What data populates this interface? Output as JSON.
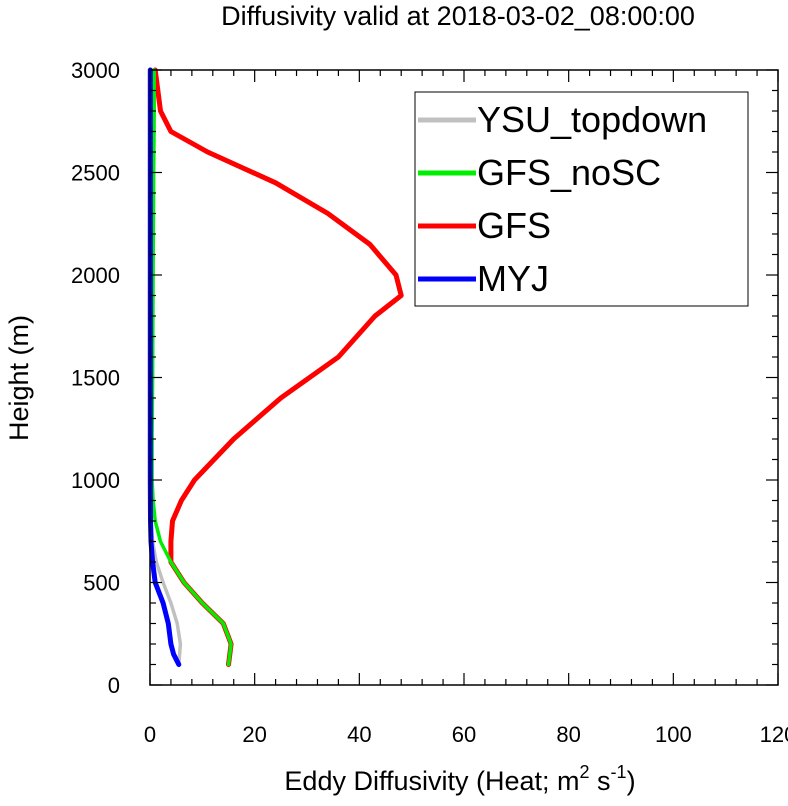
{
  "chart_data": {
    "type": "line",
    "title": "Diffusivity valid at 2018-03-02_08:00:00",
    "xlabel": {
      "prefix": "Eddy Diffusivity (Heat; m",
      "sup1": "2",
      "middle": " s",
      "sup2": "-1",
      "suffix": ")"
    },
    "ylabel": "Height (m)",
    "xlim": [
      0,
      120
    ],
    "ylim": [
      0,
      3000
    ],
    "x_ticks": [
      "0",
      "20",
      "40",
      "60",
      "80",
      "100",
      "120"
    ],
    "y_ticks": [
      "0",
      "500",
      "1000",
      "1500",
      "2000",
      "2500",
      "3000"
    ],
    "grid": false,
    "legend_position": "top-right",
    "series": [
      {
        "name": "YSU_topdown",
        "color": "#c0c0c0",
        "points": [
          [
            5.5,
            100
          ],
          [
            5.8,
            200
          ],
          [
            5.2,
            300
          ],
          [
            4,
            400
          ],
          [
            2.5,
            500
          ],
          [
            1.2,
            600
          ],
          [
            0.5,
            700
          ],
          [
            0.2,
            800
          ],
          [
            0.1,
            900
          ],
          [
            0.1,
            1000
          ],
          [
            0.2,
            1200
          ],
          [
            0.3,
            1500
          ],
          [
            0.4,
            2000
          ],
          [
            0.5,
            2500
          ],
          [
            0.6,
            2800
          ],
          [
            0.6,
            3000
          ]
        ]
      },
      {
        "name": "GFS_noSC",
        "color": "#00ee00",
        "points": [
          [
            15,
            100
          ],
          [
            15.5,
            200
          ],
          [
            14,
            300
          ],
          [
            10,
            400
          ],
          [
            6.5,
            500
          ],
          [
            4,
            600
          ],
          [
            2,
            700
          ],
          [
            1,
            800
          ],
          [
            0.6,
            900
          ],
          [
            0.4,
            1000
          ],
          [
            0.4,
            1200
          ],
          [
            0.5,
            1500
          ],
          [
            0.6,
            2000
          ],
          [
            0.7,
            2500
          ],
          [
            0.8,
            2800
          ],
          [
            0.8,
            3000
          ]
        ]
      },
      {
        "name": "GFS",
        "color": "#ff0000",
        "points": [
          [
            15,
            100
          ],
          [
            15.5,
            200
          ],
          [
            14,
            300
          ],
          [
            10,
            400
          ],
          [
            6.5,
            500
          ],
          [
            4,
            600
          ],
          [
            4,
            700
          ],
          [
            4.3,
            800
          ],
          [
            6,
            900
          ],
          [
            8.5,
            1000
          ],
          [
            16,
            1200
          ],
          [
            25,
            1400
          ],
          [
            36,
            1600
          ],
          [
            43,
            1800
          ],
          [
            48,
            1900
          ],
          [
            47,
            2000
          ],
          [
            42,
            2150
          ],
          [
            34,
            2300
          ],
          [
            24,
            2450
          ],
          [
            11,
            2600
          ],
          [
            4,
            2700
          ],
          [
            2,
            2800
          ],
          [
            1,
            3000
          ]
        ]
      },
      {
        "name": "MYJ",
        "color": "#0000ff",
        "points": [
          [
            5.5,
            100
          ],
          [
            4.5,
            150
          ],
          [
            4,
            200
          ],
          [
            3.5,
            300
          ],
          [
            2.5,
            400
          ],
          [
            1,
            500
          ],
          [
            0.5,
            600
          ],
          [
            0.2,
            700
          ],
          [
            0.1,
            800
          ],
          [
            0.05,
            1000
          ],
          [
            0.05,
            1500
          ],
          [
            0.05,
            2000
          ],
          [
            0.05,
            2500
          ],
          [
            0.05,
            3000
          ]
        ]
      }
    ]
  }
}
